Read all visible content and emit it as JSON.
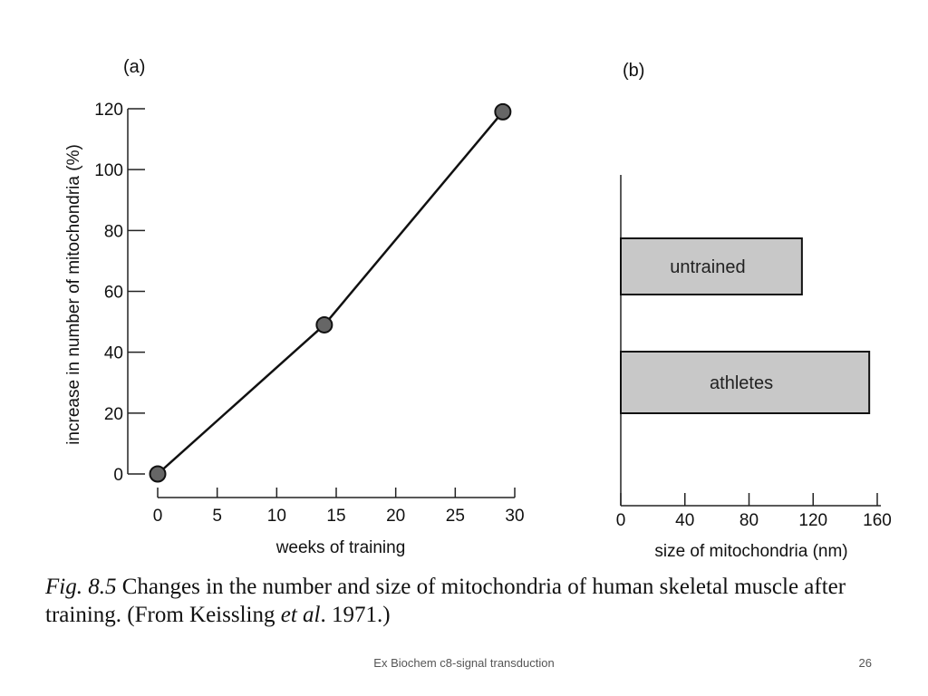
{
  "chart_data": [
    {
      "type": "line",
      "panel_label": "(a)",
      "xlabel": "weeks of training",
      "ylabel": "increase in number of mitochondria (%)",
      "xlim": [
        0,
        30
      ],
      "ylim": [
        0,
        120
      ],
      "x_ticks": [
        "0",
        "5",
        "10",
        "15",
        "20",
        "25",
        "30"
      ],
      "y_ticks": [
        "0",
        "20",
        "40",
        "60",
        "80",
        "100",
        "120"
      ],
      "points": [
        {
          "x": 0,
          "y": 0
        },
        {
          "x": 14,
          "y": 49
        },
        {
          "x": 29,
          "y": 119
        }
      ],
      "marker_color": "#666666",
      "line_color": "#111111"
    },
    {
      "type": "bar",
      "orientation": "horizontal",
      "panel_label": "(b)",
      "xlabel": "size of mitochondria (nm)",
      "xlim": [
        0,
        160
      ],
      "x_ticks": [
        "0",
        "40",
        "80",
        "120",
        "160"
      ],
      "categories": [
        "untrained",
        "athletes"
      ],
      "values": [
        113,
        155
      ],
      "bar_color": "#c8c8c8"
    }
  ],
  "caption": {
    "fig_number": "Fig. 8.5",
    "text_before": " Changes in the number and size of mitochondria of human skeletal muscle after training. (From Keissling ",
    "et_al": "et al",
    "text_after": ". 1971.)"
  },
  "footer": {
    "title": "Ex Biochem c8-signal transduction",
    "page_number": "26"
  }
}
